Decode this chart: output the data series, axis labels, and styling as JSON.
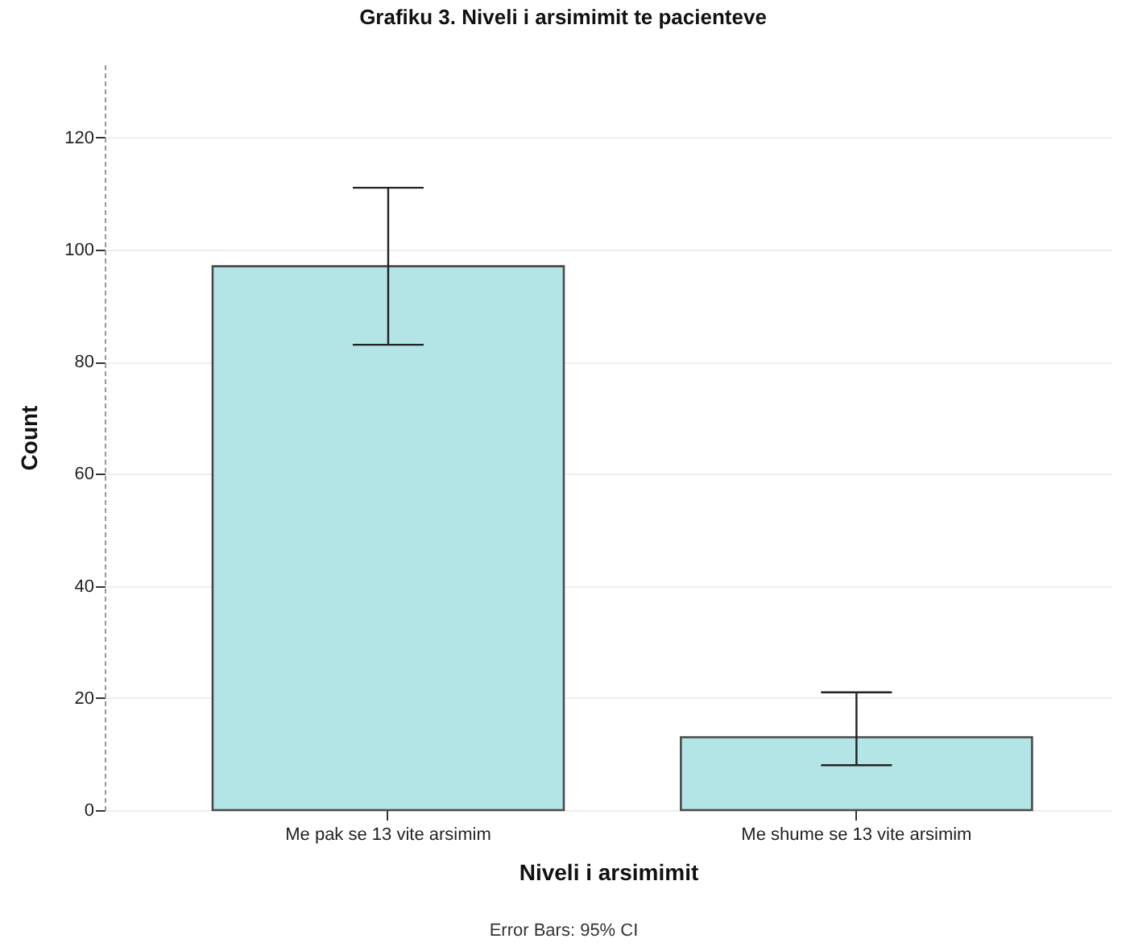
{
  "chart_data": {
    "type": "bar",
    "title": "Grafiku 3. Niveli i arsimimit te pacienteve",
    "xlabel": "Niveli i arsimimit",
    "ylabel": "Count",
    "categories": [
      "Me pak se 13 vite arsimim",
      "Me shume se 13 vite arsimim"
    ],
    "values": [
      97,
      13
    ],
    "errors": [
      [
        83,
        111
      ],
      [
        8,
        21
      ]
    ],
    "color": "#b3e4e6",
    "ylim": [
      0,
      133
    ],
    "yticks": [
      0,
      20,
      40,
      60,
      80,
      100,
      120
    ],
    "grid": "y",
    "annotations": [
      "Error Bars: 95% CI"
    ]
  }
}
